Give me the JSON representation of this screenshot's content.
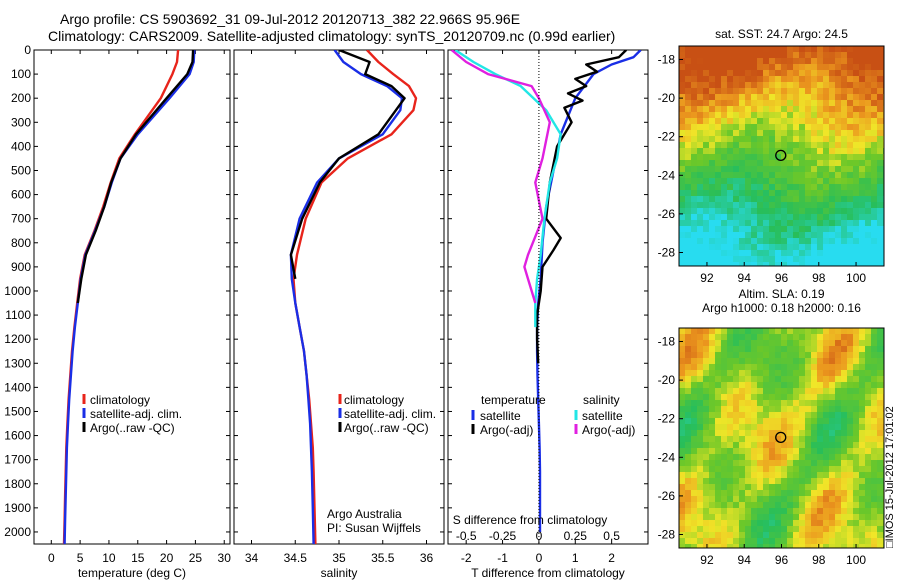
{
  "header": {
    "title_line1": "Argo profile: CS 5903692_31 09-Jul-2012 20120713_382 22.966S 95.96E",
    "title_line2": "Climatology: CARS2009. Satellite-adjusted climatology: synTS_20120709.nc (0.99d earlier)"
  },
  "colors": {
    "climatology": "#e8241b",
    "satellite": "#1a2ee6",
    "argo": "#000000",
    "satellite_salinity": "#22e6e6",
    "argo_salinity_diff": "#e020e0"
  },
  "chart_data": [
    {
      "type": "line",
      "name": "temperature-panel",
      "xlabel": "temperature (deg C)",
      "ylabel": "",
      "xlim": [
        -3,
        31
      ],
      "ylim": [
        2050,
        0
      ],
      "xticks": [
        0,
        5,
        10,
        15,
        20,
        25,
        30
      ],
      "yticks": [
        0,
        100,
        200,
        300,
        400,
        500,
        600,
        700,
        800,
        900,
        1000,
        1100,
        1200,
        1300,
        1400,
        1500,
        1600,
        1700,
        1800,
        1900,
        2000
      ],
      "legend": [
        "climatology",
        "satellite-adj. clim.",
        "Argo(..raw -QC)"
      ],
      "legend_position": "center",
      "series": [
        {
          "name": "climatology",
          "color_key": "climatology",
          "x": [
            22.0,
            21.8,
            21.0,
            19.0,
            14.5,
            11.8,
            10.3,
            9.0,
            7.5,
            5.8,
            5.0,
            4.5,
            4.0,
            3.6,
            3.3,
            3.0,
            2.8,
            2.6,
            2.5,
            2.4,
            2.3,
            2.2
          ],
          "y": [
            0,
            50,
            100,
            200,
            350,
            450,
            550,
            650,
            750,
            850,
            950,
            1050,
            1150,
            1250,
            1350,
            1450,
            1550,
            1650,
            1750,
            1850,
            1950,
            2050
          ]
        },
        {
          "name": "satellite-adj. clim.",
          "color_key": "satellite",
          "x": [
            24.8,
            24.7,
            24.0,
            20.5,
            15.0,
            12.0,
            10.5,
            9.2,
            7.6,
            5.9,
            5.1,
            4.6,
            4.1,
            3.7,
            3.4,
            3.1,
            2.9,
            2.7,
            2.6,
            2.5,
            2.4,
            2.3
          ],
          "y": [
            0,
            50,
            100,
            200,
            350,
            450,
            550,
            650,
            750,
            850,
            950,
            1050,
            1150,
            1250,
            1350,
            1450,
            1550,
            1650,
            1750,
            1850,
            1950,
            2050
          ]
        },
        {
          "name": "Argo(..raw -QC)",
          "color_key": "argo",
          "x": [
            24.6,
            24.5,
            23.6,
            20.0,
            14.7,
            12.0,
            10.4,
            9.2,
            7.7,
            6.0,
            5.2,
            4.6
          ],
          "y": [
            0,
            50,
            100,
            200,
            350,
            450,
            550,
            650,
            750,
            850,
            950,
            1050
          ]
        }
      ]
    },
    {
      "type": "line",
      "name": "salinity-panel",
      "xlabel": "salinity",
      "xlim": [
        33.8,
        36.2
      ],
      "ylim": [
        2050,
        0
      ],
      "xticks": [
        34,
        34.5,
        35,
        35.5,
        36
      ],
      "legend": [
        "climatology",
        "satellite-adj. clim.",
        "Argo(..raw -QC)"
      ],
      "legend_position": "center-right",
      "annotation_line1": "Argo Australia",
      "annotation_line2": "PI: Susan Wijffels",
      "series": [
        {
          "name": "climatology",
          "color_key": "climatology",
          "x": [
            35.32,
            35.45,
            35.62,
            35.8,
            35.88,
            35.85,
            35.6,
            35.1,
            34.8,
            34.62,
            34.52,
            34.48,
            34.5,
            34.55,
            34.6,
            34.63,
            34.66,
            34.68,
            34.7,
            34.71,
            34.72,
            34.73
          ],
          "y": [
            0,
            50,
            100,
            150,
            200,
            250,
            350,
            450,
            550,
            700,
            850,
            950,
            1050,
            1150,
            1250,
            1350,
            1450,
            1550,
            1650,
            1750,
            1900,
            2050
          ]
        },
        {
          "name": "satellite-adj. clim.",
          "color_key": "satellite",
          "x": [
            34.95,
            35.05,
            35.25,
            35.55,
            35.72,
            35.7,
            35.5,
            35.0,
            34.75,
            34.55,
            34.45,
            34.46,
            34.5,
            34.55,
            34.6,
            34.63,
            34.65,
            34.67,
            34.68,
            34.69,
            34.7,
            34.71
          ],
          "y": [
            0,
            50,
            100,
            150,
            200,
            250,
            350,
            450,
            550,
            700,
            850,
            950,
            1050,
            1150,
            1250,
            1350,
            1450,
            1550,
            1650,
            1750,
            1900,
            2050
          ]
        },
        {
          "name": "Argo(..raw -QC)",
          "color_key": "argo",
          "x": [
            35.0,
            35.35,
            35.3,
            35.6,
            35.75,
            35.65,
            35.45,
            35.0,
            34.78,
            34.58,
            34.45,
            34.5
          ],
          "y": [
            0,
            50,
            100,
            150,
            200,
            250,
            350,
            450,
            550,
            700,
            850,
            950
          ]
        }
      ]
    },
    {
      "type": "line",
      "name": "difference-panel",
      "xlabel": "T difference from climatology",
      "secondary_xlabel": "S difference from climatology",
      "xlim": [
        -2.5,
        3.0
      ],
      "ylim": [
        2050,
        0
      ],
      "xticks": [
        -2,
        -1,
        0,
        1,
        2
      ],
      "xtick_labels": [
        "-2",
        "-1",
        "0",
        "1",
        "2"
      ],
      "secondary_xticks": [
        -0.5,
        -0.25,
        0,
        0.25,
        0.5
      ],
      "secondary_xtick_labels": [
        "-0.5",
        "-0.25",
        "0",
        "0.25",
        "0.5"
      ],
      "legend_temperature_title": "temperature",
      "legend_salinity_title": "salinity",
      "legend_temperature": [
        "satellite",
        "Argo(-adj)"
      ],
      "legend_salinity": [
        "satellite",
        "Argo(-adj)"
      ],
      "series": [
        {
          "name": "T satellite",
          "color_key": "satellite",
          "x": [
            2.8,
            2.6,
            2.0,
            1.5,
            1.0,
            0.6,
            0.4,
            0.2,
            0.1,
            0.05,
            -0.02,
            -0.05,
            -0.05,
            -0.04,
            -0.02,
            0.0,
            0.02,
            0.03,
            0.03,
            0.03
          ],
          "y": [
            0,
            30,
            60,
            100,
            200,
            350,
            500,
            650,
            800,
            950,
            1050,
            1150,
            1250,
            1350,
            1450,
            1550,
            1650,
            1750,
            1850,
            2000
          ]
        },
        {
          "name": "T Argo(-adj)",
          "color_key": "argo",
          "x": [
            2.4,
            2.2,
            1.3,
            1.6,
            1.0,
            1.3,
            0.8,
            1.2,
            0.7,
            0.9,
            0.5,
            0.3,
            0.2,
            0.6,
            0.4,
            0.1,
            0.05,
            -0.05,
            -0.05,
            -0.02
          ],
          "y": [
            0,
            30,
            60,
            90,
            120,
            150,
            180,
            210,
            240,
            300,
            400,
            550,
            700,
            780,
            830,
            900,
            1000,
            1100,
            1200,
            1300
          ]
        },
        {
          "name": "S satellite",
          "color_key": "satellite_salinity",
          "x": [
            -2.3,
            -1.8,
            -1.2,
            -0.5,
            0.2,
            0.6,
            0.5,
            0.3,
            0.15,
            0.05,
            -0.05,
            -0.1,
            -0.1
          ],
          "y": [
            0,
            50,
            100,
            150,
            250,
            350,
            450,
            550,
            700,
            850,
            950,
            1050,
            1150
          ]
        },
        {
          "name": "S Argo(-adj)",
          "color_key": "argo_salinity_diff",
          "x": [
            -2.4,
            -2.0,
            -1.4,
            -0.2,
            0.0,
            0.3,
            0.1,
            -0.1,
            0.1,
            -0.3,
            -0.4,
            -0.3,
            -0.1
          ],
          "y": [
            0,
            50,
            100,
            150,
            200,
            300,
            450,
            550,
            700,
            850,
            900,
            950,
            1050
          ]
        }
      ]
    },
    {
      "type": "heatmap",
      "name": "sst-map",
      "title": "sat. SST: 24.7  Argo: 24.5",
      "xticks": [
        92,
        94,
        96,
        98,
        100
      ],
      "yticks": [
        -18,
        -20,
        -22,
        -24,
        -26,
        -28
      ],
      "xlim": [
        90.5,
        101.5
      ],
      "ylim": [
        -28.7,
        -17.3
      ],
      "marker": {
        "lon": 95.96,
        "lat": -22.966
      }
    },
    {
      "type": "heatmap",
      "name": "sla-map",
      "title_line1": "Altim. SLA: 0.19",
      "title_line2": "Argo h1000: 0.18 h2000: 0.16",
      "xticks": [
        92,
        94,
        96,
        98,
        100
      ],
      "yticks": [
        -18,
        -20,
        -22,
        -24,
        -26,
        -28
      ],
      "xlim": [
        90.5,
        101.5
      ],
      "ylim": [
        -28.7,
        -17.3
      ],
      "marker": {
        "lon": 95.96,
        "lat": -22.966
      }
    }
  ],
  "footer": {
    "imos_stamp": "IMOS 15-Jul-2012 17:01:02"
  }
}
